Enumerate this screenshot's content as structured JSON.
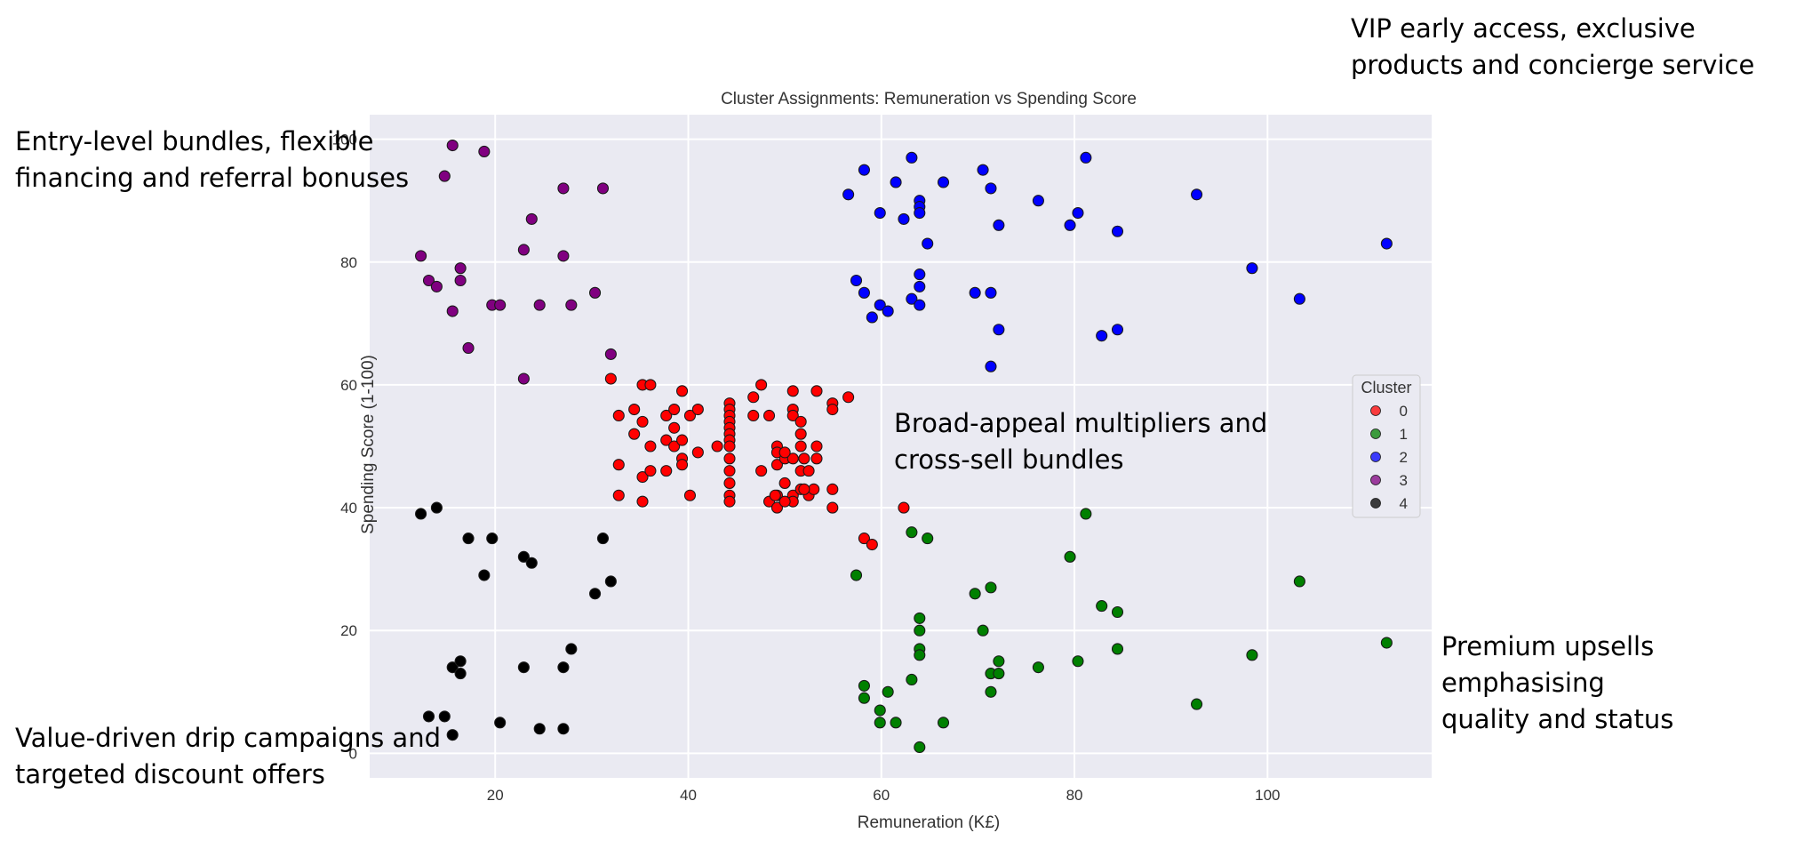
{
  "annotations": [
    {
      "name": "annotation-cluster-2",
      "lines": [
        "VIP early access, exclusive",
        "products and concierge service"
      ]
    },
    {
      "name": "annotation-cluster-3",
      "lines": [
        "Entry-level bundles, flexible",
        "financing and referral bonuses"
      ]
    },
    {
      "name": "annotation-cluster-0",
      "lines": [
        "Broad-appeal multipliers and",
        "cross-sell bundles"
      ]
    },
    {
      "name": "annotation-cluster-1",
      "lines": [
        "Premium upsells emphasising",
        "quality and status"
      ]
    },
    {
      "name": "annotation-cluster-4",
      "lines": [
        "Value-driven drip campaigns and",
        "targeted discount offers"
      ]
    }
  ],
  "chart_data": {
    "type": "scatter",
    "title": "Cluster Assignments: Remuneration vs Spending Score",
    "xlabel": "Remuneration (K£)",
    "ylabel": "Spending Score (1-100)",
    "xlim": [
      7,
      117
    ],
    "ylim": [
      -4,
      104
    ],
    "xticks": [
      20,
      40,
      60,
      80,
      100
    ],
    "yticks": [
      0,
      20,
      40,
      60,
      80,
      100
    ],
    "grid": true,
    "background": "#eaeaf2",
    "legend": {
      "title": "Cluster",
      "placement": "right"
    },
    "series": [
      {
        "name": "0",
        "color": "#ff0000",
        "points": [
          [
            31.98,
            61
          ],
          [
            32.8,
            55
          ],
          [
            32.8,
            47
          ],
          [
            32.8,
            42
          ],
          [
            34.4,
            52
          ],
          [
            34.4,
            56
          ],
          [
            35.26,
            60
          ],
          [
            36.08,
            60
          ],
          [
            35.26,
            54
          ],
          [
            35.26,
            45
          ],
          [
            35.26,
            41
          ],
          [
            36.08,
            50
          ],
          [
            36.08,
            46
          ],
          [
            37.72,
            55
          ],
          [
            37.72,
            51
          ],
          [
            37.72,
            46
          ],
          [
            38.54,
            56
          ],
          [
            38.54,
            53
          ],
          [
            38.54,
            50
          ],
          [
            39.36,
            59
          ],
          [
            39.36,
            51
          ],
          [
            39.36,
            48
          ],
          [
            39.36,
            47
          ],
          [
            40.18,
            55
          ],
          [
            40.18,
            42
          ],
          [
            41,
            49
          ],
          [
            41,
            56
          ],
          [
            43,
            50
          ],
          [
            44.28,
            57
          ],
          [
            44.28,
            56
          ],
          [
            44.28,
            55
          ],
          [
            44.28,
            54
          ],
          [
            44.28,
            53
          ],
          [
            44.28,
            52
          ],
          [
            44.28,
            51
          ],
          [
            44.28,
            50
          ],
          [
            44.28,
            48
          ],
          [
            44.28,
            46
          ],
          [
            44.28,
            44
          ],
          [
            44.28,
            42
          ],
          [
            44.28,
            41
          ],
          [
            46.74,
            58
          ],
          [
            46.74,
            55
          ],
          [
            47.56,
            60
          ],
          [
            47.56,
            46
          ],
          [
            48.38,
            55
          ],
          [
            48.38,
            41
          ],
          [
            49.2,
            50
          ],
          [
            49.2,
            49
          ],
          [
            49.2,
            47
          ],
          [
            49.2,
            42
          ],
          [
            49.2,
            40
          ],
          [
            50.02,
            48
          ],
          [
            50.84,
            59
          ],
          [
            50.84,
            56
          ],
          [
            50.84,
            55
          ],
          [
            50.84,
            48
          ],
          [
            50.84,
            42
          ],
          [
            50.84,
            41
          ],
          [
            51.66,
            54
          ],
          [
            51.66,
            52
          ],
          [
            51.66,
            50
          ],
          [
            51.66,
            46
          ],
          [
            51.66,
            43
          ],
          [
            52.48,
            46
          ],
          [
            52.48,
            42
          ],
          [
            53.3,
            59
          ],
          [
            53.3,
            50
          ],
          [
            53.3,
            48
          ],
          [
            54.94,
            57
          ],
          [
            54.94,
            56
          ],
          [
            54.94,
            43
          ],
          [
            54.94,
            40
          ],
          [
            56.58,
            58
          ],
          [
            49,
            42
          ],
          [
            50,
            49
          ],
          [
            52,
            48
          ],
          [
            58.22,
            35
          ],
          [
            59.04,
            34
          ],
          [
            62.32,
            40
          ],
          [
            53,
            43
          ],
          [
            50,
            44
          ],
          [
            52,
            43
          ],
          [
            50,
            41
          ]
        ]
      },
      {
        "name": "1",
        "color": "#008000",
        "points": [
          [
            57.4,
            29
          ],
          [
            58.22,
            11
          ],
          [
            58.22,
            9
          ],
          [
            59.86,
            7
          ],
          [
            59.86,
            5
          ],
          [
            60.68,
            10
          ],
          [
            61.5,
            5
          ],
          [
            63.14,
            36
          ],
          [
            63.14,
            12
          ],
          [
            63.96,
            22
          ],
          [
            63.96,
            20
          ],
          [
            63.96,
            17
          ],
          [
            63.96,
            16
          ],
          [
            63.96,
            1
          ],
          [
            64.78,
            35
          ],
          [
            66.42,
            5
          ],
          [
            69.7,
            26
          ],
          [
            70.52,
            20
          ],
          [
            71.34,
            27
          ],
          [
            71.34,
            13
          ],
          [
            71.34,
            10
          ],
          [
            72.16,
            15
          ],
          [
            72.16,
            13
          ],
          [
            76.26,
            14
          ],
          [
            79.54,
            32
          ],
          [
            80.36,
            15
          ],
          [
            81.18,
            39
          ],
          [
            82.82,
            24
          ],
          [
            84.46,
            23
          ],
          [
            84.46,
            17
          ],
          [
            92.66,
            8
          ],
          [
            98.4,
            16
          ],
          [
            103.32,
            28
          ],
          [
            112.34,
            18
          ]
        ]
      },
      {
        "name": "2",
        "color": "#0000ff",
        "points": [
          [
            56.58,
            91
          ],
          [
            57.4,
            77
          ],
          [
            58.22,
            95
          ],
          [
            58.22,
            75
          ],
          [
            59.04,
            71
          ],
          [
            59.86,
            88
          ],
          [
            59.86,
            73
          ],
          [
            60.68,
            72
          ],
          [
            61.5,
            93
          ],
          [
            62.32,
            87
          ],
          [
            63.14,
            97
          ],
          [
            63.14,
            74
          ],
          [
            63.96,
            90
          ],
          [
            63.96,
            89
          ],
          [
            63.96,
            88
          ],
          [
            63.96,
            78
          ],
          [
            63.96,
            76
          ],
          [
            63.96,
            73
          ],
          [
            64.78,
            83
          ],
          [
            66.42,
            93
          ],
          [
            69.7,
            75
          ],
          [
            70.52,
            95
          ],
          [
            71.34,
            92
          ],
          [
            71.34,
            75
          ],
          [
            71.34,
            63
          ],
          [
            72.16,
            86
          ],
          [
            72.16,
            69
          ],
          [
            76.26,
            90
          ],
          [
            79.54,
            86
          ],
          [
            80.36,
            88
          ],
          [
            81.18,
            97
          ],
          [
            82.82,
            68
          ],
          [
            84.46,
            85
          ],
          [
            84.46,
            69
          ],
          [
            92.66,
            91
          ],
          [
            98.4,
            79
          ],
          [
            103.32,
            74
          ],
          [
            112.34,
            83
          ]
        ]
      },
      {
        "name": "3",
        "color": "#800080",
        "points": [
          [
            12.3,
            81
          ],
          [
            13.12,
            77
          ],
          [
            13.94,
            76
          ],
          [
            14.76,
            94
          ],
          [
            15.58,
            99
          ],
          [
            15.58,
            72
          ],
          [
            16.4,
            79
          ],
          [
            16.4,
            77
          ],
          [
            17.22,
            66
          ],
          [
            18.86,
            98
          ],
          [
            19.68,
            73
          ],
          [
            20.5,
            73
          ],
          [
            22.96,
            82
          ],
          [
            22.96,
            61
          ],
          [
            23.78,
            87
          ],
          [
            24.6,
            73
          ],
          [
            27.06,
            92
          ],
          [
            27.06,
            81
          ],
          [
            27.88,
            73
          ],
          [
            30.34,
            75
          ],
          [
            31.16,
            92
          ],
          [
            31.98,
            65
          ]
        ]
      },
      {
        "name": "4",
        "color": "#000000",
        "points": [
          [
            12.3,
            39
          ],
          [
            13.12,
            6
          ],
          [
            13.94,
            40
          ],
          [
            14.76,
            6
          ],
          [
            15.58,
            14
          ],
          [
            15.58,
            3
          ],
          [
            16.4,
            15
          ],
          [
            16.4,
            13
          ],
          [
            17.22,
            35
          ],
          [
            18.86,
            29
          ],
          [
            19.68,
            35
          ],
          [
            20.5,
            5
          ],
          [
            22.96,
            32
          ],
          [
            22.96,
            14
          ],
          [
            23.78,
            31
          ],
          [
            24.6,
            4
          ],
          [
            27.06,
            14
          ],
          [
            27.06,
            4
          ],
          [
            27.88,
            17
          ],
          [
            30.34,
            26
          ],
          [
            31.16,
            35
          ],
          [
            31.98,
            28
          ]
        ]
      }
    ]
  }
}
